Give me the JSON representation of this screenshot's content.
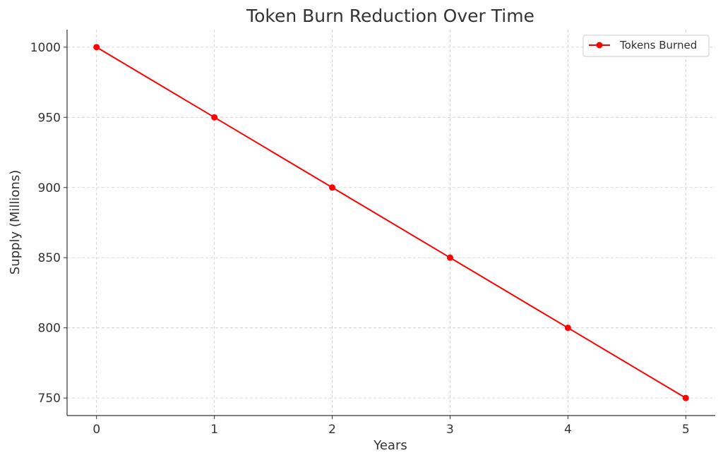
{
  "chart_data": {
    "type": "line",
    "title": "Token Burn Reduction Over Time",
    "xlabel": "Years",
    "ylabel": "Supply (Millions)",
    "x": [
      0,
      1,
      2,
      3,
      4,
      5
    ],
    "series": [
      {
        "name": "Tokens Burned",
        "values": [
          1000,
          950,
          900,
          850,
          800,
          750
        ],
        "color": "#ff0000",
        "marker": "circle"
      }
    ],
    "xticks": [
      "0",
      "1",
      "2",
      "3",
      "4",
      "5"
    ],
    "yticks": [
      "750",
      "800",
      "850",
      "900",
      "950",
      "1000"
    ],
    "xlim": [
      -0.25,
      5.25
    ],
    "ylim": [
      737.5,
      1012.5
    ],
    "grid": true,
    "legend_position": "top-right"
  }
}
